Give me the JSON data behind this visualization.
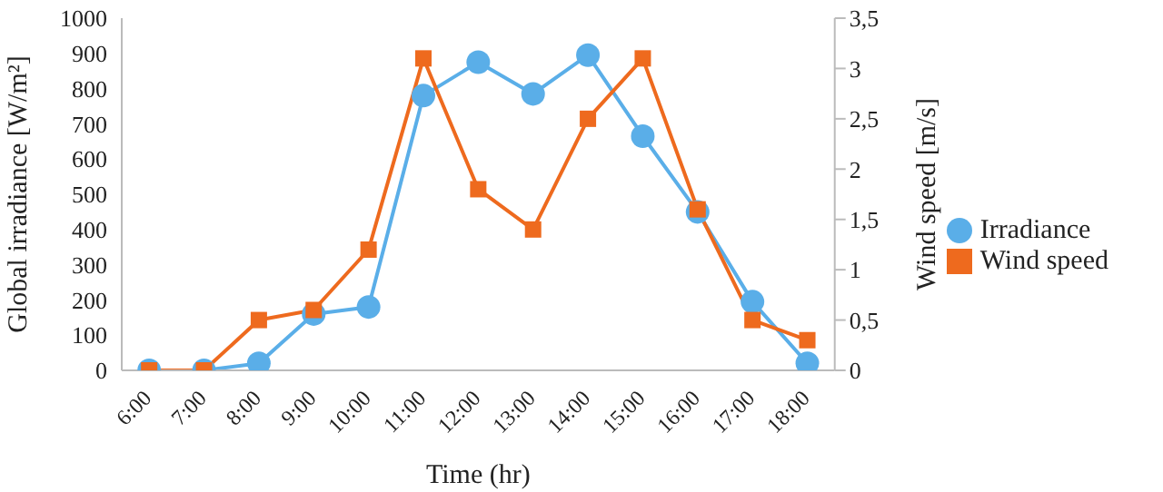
{
  "chart_data": {
    "type": "line",
    "xlabel": "Time (hr)",
    "ylabel": "Global irradiance [W/m²]",
    "y2label": "Wind speed [m/s]",
    "categories": [
      "6:00",
      "7:00",
      "8:00",
      "9:00",
      "10:00",
      "11:00",
      "12:00",
      "13:00",
      "14:00",
      "15:00",
      "16:00",
      "17:00",
      "18:00"
    ],
    "series": [
      {
        "name": "Irradiance",
        "color": "#5aaee8",
        "marker": "circle",
        "values": [
          0,
          0,
          20,
          160,
          180,
          780,
          875,
          785,
          895,
          665,
          450,
          195,
          20
        ]
      },
      {
        "name": "Wind speed",
        "color": "#ee6a1e",
        "marker": "square",
        "axis": "y2",
        "values": [
          0,
          0,
          0.5,
          0.6,
          1.2,
          3.1,
          1.8,
          1.4,
          2.5,
          3.1,
          1.6,
          0.5,
          0.3
        ]
      }
    ],
    "ylim": [
      0,
      1000
    ],
    "yticks": [
      0,
      100,
      200,
      300,
      400,
      500,
      600,
      700,
      800,
      900,
      1000
    ],
    "y2lim": [
      0,
      3.5
    ],
    "y2ticks": [
      0,
      {
        "value": 0.5,
        "label": "0,5"
      },
      1,
      {
        "value": 1.5,
        "label": "1,5"
      },
      2,
      {
        "value": 2.5,
        "label": "2,5"
      },
      3,
      {
        "value": 3.5,
        "label": "3,5"
      }
    ],
    "grid": false,
    "legend": "right"
  }
}
